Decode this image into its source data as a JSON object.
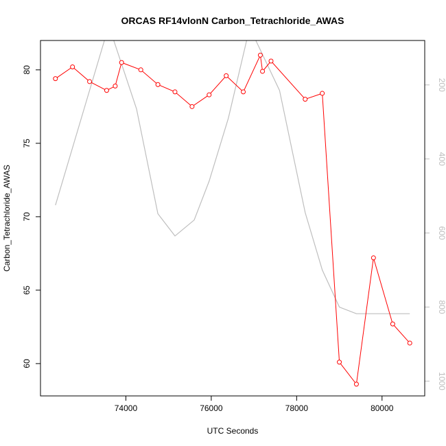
{
  "chart_data": {
    "type": "line",
    "title": "ORCAS RF14vlonN Carbon_Tetrachloride_AWAS",
    "xlabel": "UTC Seconds",
    "ylabel": "Carbon_Tetrachloride_AWAS",
    "xlim": [
      72000,
      81000
    ],
    "ylim": [
      57.8,
      82
    ],
    "x_ticks": [
      74000,
      76000,
      78000,
      80000
    ],
    "y_ticks": [
      60,
      65,
      70,
      75,
      80
    ],
    "y2_ticks": [
      200,
      400,
      600,
      800,
      1000
    ],
    "y2lim": [
      1040,
      80
    ],
    "y2_reversed": true,
    "grid": false,
    "series": [
      {
        "role": "primary",
        "color": "#ff0000",
        "marker": "open-circle",
        "x": [
          72350,
          72750,
          73150,
          73550,
          73750,
          73900,
          74350,
          74750,
          75150,
          75550,
          75950,
          76350,
          76750,
          77150,
          77200,
          77400,
          78200,
          78600,
          79000,
          79400,
          79800,
          80250,
          80650
        ],
        "y": [
          79.4,
          80.2,
          79.2,
          78.6,
          78.9,
          80.5,
          80.0,
          79.0,
          78.5,
          77.5,
          78.3,
          79.6,
          78.5,
          81.0,
          79.9,
          80.6,
          78.0,
          78.4,
          60.1,
          58.6,
          67.2,
          62.7,
          61.4
        ]
      },
      {
        "role": "secondary",
        "color": "#bebebe",
        "axis": "right",
        "x": [
          72350,
          73600,
          74250,
          74750,
          75150,
          75600,
          75950,
          76400,
          76900,
          77600,
          78200,
          78600,
          79000,
          79400,
          79800,
          80250,
          80650
        ],
        "y": [
          525,
          40,
          265,
          548,
          608,
          565,
          460,
          290,
          45,
          215,
          545,
          700,
          800,
          818,
          818,
          818,
          818
        ]
      }
    ]
  }
}
